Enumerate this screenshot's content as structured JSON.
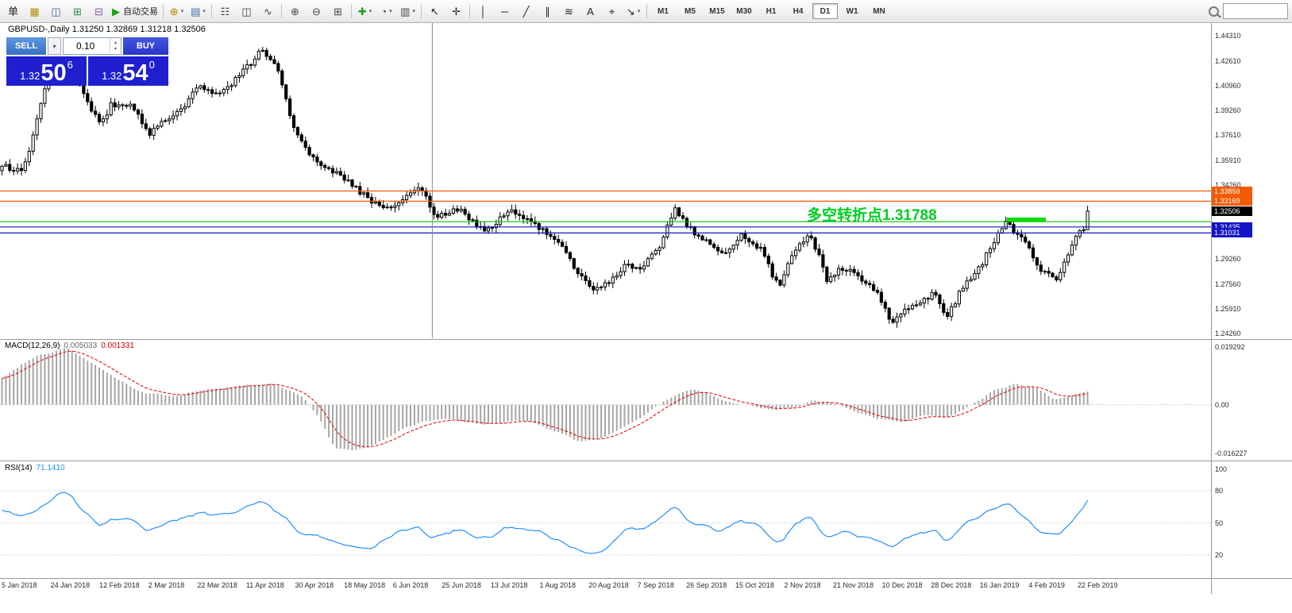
{
  "toolbar": {
    "search_value": "",
    "active_timeframe": "D1",
    "timeframes": [
      "M1",
      "M5",
      "M15",
      "M30",
      "H1",
      "H4",
      "D1",
      "W1",
      "MN"
    ],
    "items": [
      {
        "name": "new-order-button",
        "glyph": "单",
        "color": "#222"
      },
      {
        "name": "market-watch-button",
        "glyph": "▦",
        "color": "#b8860b"
      },
      {
        "name": "data-window-button",
        "glyph": "◫",
        "color": "#4169aa"
      },
      {
        "name": "navigator-button",
        "glyph": "⊞",
        "color": "#2e8b57"
      },
      {
        "name": "terminal-button",
        "glyph": "⊟",
        "color": "#7a5ca8"
      },
      {
        "name": "autotrading-button",
        "glyph": "▶",
        "color": "#18a018",
        "label": "自动交易"
      },
      {
        "sep": true
      },
      {
        "name": "new-chart-button",
        "glyph": "⊕",
        "color": "#b8860b",
        "caret": true
      },
      {
        "name": "profiles-button",
        "glyph": "▤",
        "color": "#4169aa",
        "caret": true
      },
      {
        "sep": true
      },
      {
        "name": "bar-chart-button",
        "glyph": "☷",
        "color": "#444"
      },
      {
        "name": "candlestick-chart-button",
        "glyph": "◫",
        "color": "#444"
      },
      {
        "name": "line-chart-button",
        "glyph": "∿",
        "color": "#444"
      },
      {
        "sep": true
      },
      {
        "name": "zoom-in-button",
        "glyph": "⊕",
        "color": "#444"
      },
      {
        "name": "zoom-out-button",
        "glyph": "⊖",
        "color": "#444"
      },
      {
        "name": "tile-windows-button",
        "glyph": "⊞",
        "color": "#444"
      },
      {
        "sep": true
      },
      {
        "name": "indicators-button",
        "glyph": "✚",
        "color": "#18a018",
        "caret": true
      },
      {
        "name": "periods-button",
        "glyph": "◔",
        "color": "#444",
        "caret": true
      },
      {
        "name": "templates-button",
        "glyph": "▥",
        "color": "#444",
        "caret": true
      },
      {
        "sep": true
      },
      {
        "name": "cursor-button",
        "glyph": "↖",
        "color": "#222"
      },
      {
        "name": "crosshair-button",
        "glyph": "✛",
        "color": "#222"
      },
      {
        "sep": true
      },
      {
        "name": "vertical-line-button",
        "glyph": "│",
        "color": "#222"
      },
      {
        "name": "horizontal-line-button",
        "glyph": "─",
        "color": "#222"
      },
      {
        "name": "trendline-button",
        "glyph": "╱",
        "color": "#222"
      },
      {
        "name": "equidistant-channel-button",
        "glyph": "∥",
        "color": "#222"
      },
      {
        "name": "fibonacci-button",
        "glyph": "≋",
        "color": "#222"
      },
      {
        "name": "text-button",
        "glyph": "A",
        "color": "#222"
      },
      {
        "name": "label-button",
        "glyph": "⌖",
        "color": "#222"
      },
      {
        "name": "arrows-button",
        "glyph": "↘",
        "color": "#222",
        "caret": true
      },
      {
        "sep": true
      }
    ]
  },
  "ui": {
    "caret_down": "▾",
    "spin_up": "▴",
    "spin_down": "▾"
  },
  "chart": {
    "title_symbol": "GBPUSD-,Daily",
    "title_ohlc": "1.31250 1.32869 1.31218 1.32506"
  },
  "trade_panel": {
    "sell_label": "SELL",
    "buy_label": "BUY",
    "volume": "0.10",
    "sell_price_prefix": "1.32",
    "sell_price_pips": "50",
    "sell_price_point": "6",
    "buy_price_prefix": "1.32",
    "buy_price_pips": "54",
    "buy_price_point": "0",
    "sell_color": "#3672c4",
    "buy_color": "#2736c8",
    "quote_bg": "#1f1fd0"
  },
  "chart_data": {
    "type": "candlestick+indicators",
    "symbol": "GBPUSD",
    "timeframe": "Daily",
    "candles_count": 280,
    "ohlc_current": {
      "open": 1.3125,
      "high": 1.32869,
      "low": 1.31218,
      "close": 1.32506
    },
    "price_range": {
      "top": 1.4431,
      "bottom": 1.2426
    },
    "price_axis_labels": [
      "1.44310",
      "1.42610",
      "1.40960",
      "1.39260",
      "1.37610",
      "1.35910",
      "1.34260",
      "1.29260",
      "1.27560",
      "1.25910",
      "1.24260"
    ],
    "price_tags": [
      {
        "text": "1.33859",
        "price": 1.33859,
        "bg": "#f25a05"
      },
      {
        "text": "1.33169",
        "price": 1.33169,
        "bg": "#f25a05"
      },
      {
        "text": "1.32506",
        "price": 1.32506,
        "bg": "#000000"
      },
      {
        "text": "1.31435",
        "price": 1.31435,
        "bg": "#1414c8"
      },
      {
        "text": "1.31031",
        "price": 1.31031,
        "bg": "#1414c8"
      }
    ],
    "hlines": [
      {
        "price": 1.33859,
        "color": "#f25a05"
      },
      {
        "price": 1.33169,
        "color": "#f25a05"
      },
      {
        "price": 1.31788,
        "color": "#00c400"
      },
      {
        "price": 1.31435,
        "color": "#1414c8"
      },
      {
        "price": 1.31031,
        "color": "#1414c8"
      }
    ],
    "annotation": {
      "text": "多空转折点1.31788",
      "color": "#00cc22",
      "price": 1.31788
    },
    "vline": {
      "x_frac": 0.357,
      "color": "#8c8c8c"
    },
    "green_segment": {
      "x1_frac": 0.8315,
      "x2_frac": 0.8636,
      "price": 1.3193,
      "color": "#00dc00"
    },
    "price_path": [
      [
        0,
        1.355
      ],
      [
        0.02,
        1.352
      ],
      [
        0.045,
        1.423
      ],
      [
        0.06,
        1.427
      ],
      [
        0.07,
        1.412
      ],
      [
        0.09,
        1.383
      ],
      [
        0.1,
        1.396
      ],
      [
        0.12,
        1.395
      ],
      [
        0.135,
        1.377
      ],
      [
        0.15,
        1.386
      ],
      [
        0.165,
        1.393
      ],
      [
        0.18,
        1.409
      ],
      [
        0.2,
        1.403
      ],
      [
        0.22,
        1.417
      ],
      [
        0.24,
        1.434
      ],
      [
        0.255,
        1.419
      ],
      [
        0.27,
        1.377
      ],
      [
        0.29,
        1.358
      ],
      [
        0.31,
        1.35
      ],
      [
        0.33,
        1.338
      ],
      [
        0.35,
        1.326
      ],
      [
        0.37,
        1.332
      ],
      [
        0.385,
        1.341
      ],
      [
        0.4,
        1.321
      ],
      [
        0.42,
        1.327
      ],
      [
        0.435,
        1.316
      ],
      [
        0.45,
        1.312
      ],
      [
        0.465,
        1.326
      ],
      [
        0.48,
        1.32
      ],
      [
        0.5,
        1.312
      ],
      [
        0.515,
        1.302
      ],
      [
        0.53,
        1.284
      ],
      [
        0.545,
        1.271
      ],
      [
        0.56,
        1.277
      ],
      [
        0.575,
        1.289
      ],
      [
        0.59,
        1.287
      ],
      [
        0.605,
        1.301
      ],
      [
        0.62,
        1.327
      ],
      [
        0.635,
        1.312
      ],
      [
        0.65,
        1.303
      ],
      [
        0.665,
        1.297
      ],
      [
        0.68,
        1.309
      ],
      [
        0.7,
        1.298
      ],
      [
        0.715,
        1.274
      ],
      [
        0.73,
        1.299
      ],
      [
        0.745,
        1.309
      ],
      [
        0.76,
        1.279
      ],
      [
        0.775,
        1.287
      ],
      [
        0.79,
        1.281
      ],
      [
        0.805,
        1.271
      ],
      [
        0.82,
        1.25
      ],
      [
        0.835,
        1.261
      ],
      [
        0.85,
        1.266
      ],
      [
        0.86,
        1.27
      ],
      [
        0.87,
        1.253
      ],
      [
        0.885,
        1.274
      ],
      [
        0.9,
        1.287
      ],
      [
        0.915,
        1.305
      ],
      [
        0.925,
        1.319
      ],
      [
        0.935,
        1.309
      ],
      [
        0.945,
        1.303
      ],
      [
        0.955,
        1.286
      ],
      [
        0.965,
        1.283
      ],
      [
        0.972,
        1.278
      ],
      [
        0.98,
        1.292
      ],
      [
        0.99,
        1.308
      ],
      [
        1,
        1.325
      ]
    ],
    "macd": {
      "label": "MACD(12,26,9)",
      "value_main": "0.005033",
      "value_signal": "0.001331",
      "range": {
        "top": 0.019292,
        "bottom": -0.016227
      },
      "axis": [
        {
          "text": "0.019292",
          "v": 0.019292
        },
        {
          "text": "0.00",
          "v": 0
        },
        {
          "text": "-0.016227",
          "v": -0.016227
        }
      ],
      "path": [
        [
          0,
          0.009
        ],
        [
          0.03,
          0.016
        ],
        [
          0.06,
          0.019
        ],
        [
          0.1,
          0.01
        ],
        [
          0.13,
          0.004
        ],
        [
          0.16,
          0.003
        ],
        [
          0.19,
          0.005
        ],
        [
          0.22,
          0.0065
        ],
        [
          0.25,
          0.007
        ],
        [
          0.28,
          0.002
        ],
        [
          0.295,
          -0.006
        ],
        [
          0.305,
          -0.0145
        ],
        [
          0.325,
          -0.0155
        ],
        [
          0.345,
          -0.013
        ],
        [
          0.37,
          -0.008
        ],
        [
          0.39,
          -0.005
        ],
        [
          0.41,
          -0.0045
        ],
        [
          0.43,
          -0.006
        ],
        [
          0.45,
          -0.007
        ],
        [
          0.47,
          -0.005
        ],
        [
          0.49,
          -0.006
        ],
        [
          0.51,
          -0.009
        ],
        [
          0.53,
          -0.012
        ],
        [
          0.55,
          -0.012
        ],
        [
          0.57,
          -0.008
        ],
        [
          0.59,
          -0.004
        ],
        [
          0.61,
          0.001
        ],
        [
          0.63,
          0.005
        ],
        [
          0.65,
          0.004
        ],
        [
          0.67,
          0.001
        ],
        [
          0.69,
          0
        ],
        [
          0.71,
          -0.002
        ],
        [
          0.73,
          -0.001
        ],
        [
          0.75,
          0.002
        ],
        [
          0.77,
          0
        ],
        [
          0.79,
          -0.003
        ],
        [
          0.81,
          -0.005
        ],
        [
          0.83,
          -0.006
        ],
        [
          0.85,
          -0.003
        ],
        [
          0.87,
          -0.004
        ],
        [
          0.89,
          -0.001
        ],
        [
          0.91,
          0.004
        ],
        [
          0.93,
          0.007
        ],
        [
          0.95,
          0.006
        ],
        [
          0.97,
          0.002
        ],
        [
          0.985,
          0.003
        ],
        [
          1,
          0.005
        ]
      ]
    },
    "rsi": {
      "label": "RSI(14)",
      "value": "71.1410",
      "axis": [
        {
          "text": "100",
          "v": 100
        },
        {
          "text": "80",
          "v": 80
        },
        {
          "text": "50",
          "v": 50
        },
        {
          "text": "20",
          "v": 20
        }
      ],
      "levels": [
        80,
        50,
        20
      ],
      "path": [
        [
          0,
          60
        ],
        [
          0.02,
          55
        ],
        [
          0.045,
          72
        ],
        [
          0.06,
          79
        ],
        [
          0.075,
          62
        ],
        [
          0.09,
          45
        ],
        [
          0.105,
          55
        ],
        [
          0.12,
          52
        ],
        [
          0.135,
          42
        ],
        [
          0.15,
          50
        ],
        [
          0.165,
          55
        ],
        [
          0.18,
          60
        ],
        [
          0.2,
          58
        ],
        [
          0.22,
          62
        ],
        [
          0.24,
          70
        ],
        [
          0.26,
          55
        ],
        [
          0.28,
          38
        ],
        [
          0.3,
          33
        ],
        [
          0.32,
          30
        ],
        [
          0.34,
          27
        ],
        [
          0.36,
          38
        ],
        [
          0.38,
          45
        ],
        [
          0.4,
          36
        ],
        [
          0.42,
          45
        ],
        [
          0.435,
          38
        ],
        [
          0.45,
          35
        ],
        [
          0.465,
          48
        ],
        [
          0.48,
          44
        ],
        [
          0.5,
          40
        ],
        [
          0.515,
          32
        ],
        [
          0.53,
          25
        ],
        [
          0.545,
          20
        ],
        [
          0.56,
          30
        ],
        [
          0.575,
          45
        ],
        [
          0.59,
          44
        ],
        [
          0.605,
          55
        ],
        [
          0.62,
          65
        ],
        [
          0.635,
          52
        ],
        [
          0.65,
          45
        ],
        [
          0.665,
          42
        ],
        [
          0.68,
          55
        ],
        [
          0.7,
          45
        ],
        [
          0.715,
          30
        ],
        [
          0.73,
          48
        ],
        [
          0.745,
          55
        ],
        [
          0.76,
          35
        ],
        [
          0.775,
          42
        ],
        [
          0.79,
          38
        ],
        [
          0.805,
          33
        ],
        [
          0.82,
          26
        ],
        [
          0.835,
          38
        ],
        [
          0.85,
          42
        ],
        [
          0.86,
          45
        ],
        [
          0.87,
          32
        ],
        [
          0.885,
          48
        ],
        [
          0.9,
          55
        ],
        [
          0.915,
          62
        ],
        [
          0.925,
          68
        ],
        [
          0.935,
          60
        ],
        [
          0.945,
          55
        ],
        [
          0.955,
          42
        ],
        [
          0.965,
          40
        ],
        [
          0.972,
          35
        ],
        [
          0.98,
          48
        ],
        [
          0.99,
          58
        ],
        [
          1,
          71
        ]
      ]
    },
    "dates": [
      "5 Jan 2018",
      "24 Jan 2018",
      "12 Feb 2018",
      "2 Mar 2018",
      "22 Mar 2018",
      "11 Apr 2018",
      "30 Apr 2018",
      "18 May 2018",
      "6 Jun 2018",
      "25 Jun 2018",
      "13 Jul 2018",
      "1 Aug 2018",
      "20 Aug 2018",
      "7 Sep 2018",
      "26 Sep 2018",
      "15 Oct 2018",
      "2 Nov 2018",
      "21 Nov 2018",
      "10 Dec 2018",
      "28 Dec 2018",
      "16 Jan 2019",
      "4 Feb 2019",
      "22 Feb 2019"
    ]
  }
}
